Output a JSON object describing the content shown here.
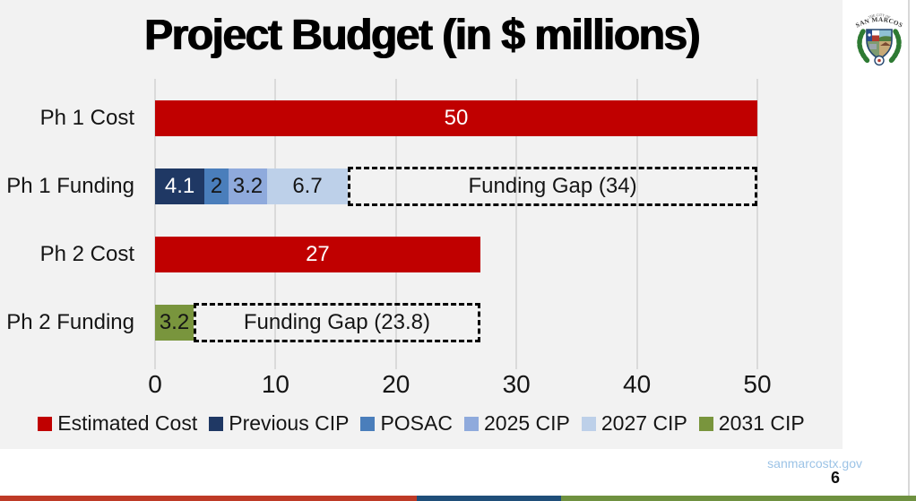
{
  "title": "Project Budget (in $ millions)",
  "logo": {
    "tagline": "THE CITY OF",
    "name": "SAN MARCOS"
  },
  "footer": {
    "website": "sanmarcostx.gov",
    "page": "6"
  },
  "footer_stripe": {
    "colors": [
      "#BE3A26",
      "#1F4E79",
      "#6F9140"
    ]
  },
  "chart_data": {
    "type": "bar",
    "orientation": "horizontal",
    "title": "Project Budget (in $ millions)",
    "xlabel": "",
    "ylabel": "",
    "xlim": [
      0,
      50
    ],
    "ticks": [
      0,
      10,
      20,
      30,
      40,
      50
    ],
    "grid": true,
    "legend_position": "bottom",
    "categories": [
      "Ph 1 Cost",
      "Ph 1 Funding",
      "Ph 2 Cost",
      "Ph 2 Funding"
    ],
    "rows": [
      {
        "category": "Ph 1 Cost",
        "segments": [
          {
            "series": "Estimated Cost",
            "value": 50,
            "label": "50"
          }
        ]
      },
      {
        "category": "Ph 1 Funding",
        "segments": [
          {
            "series": "Previous CIP",
            "value": 4.1,
            "label": "4.1"
          },
          {
            "series": "POSAC",
            "value": 2,
            "label": "2"
          },
          {
            "series": "2025 CIP",
            "value": 3.2,
            "label": "3.2"
          },
          {
            "series": "2027 CIP",
            "value": 6.7,
            "label": "6.7"
          }
        ],
        "gap": {
          "value": 34,
          "label": "Funding Gap (34)"
        }
      },
      {
        "category": "Ph 2 Cost",
        "segments": [
          {
            "series": "Estimated Cost",
            "value": 27,
            "label": "27"
          }
        ]
      },
      {
        "category": "Ph 2 Funding",
        "segments": [
          {
            "series": "2031 CIP",
            "value": 3.2,
            "label": "3.2"
          }
        ],
        "gap": {
          "value": 23.8,
          "label": "Funding Gap (23.8)"
        }
      }
    ],
    "legend": [
      {
        "label": "Estimated Cost",
        "color": "#C00000",
        "text_color": "#FFFFFF"
      },
      {
        "label": "Previous CIP",
        "color": "#1F3864",
        "text_color": "#FFFFFF"
      },
      {
        "label": "POSAC",
        "color": "#4A7EBB",
        "text_color": "#151515"
      },
      {
        "label": "2025 CIP",
        "color": "#8FAADC",
        "text_color": "#151515"
      },
      {
        "label": "2027 CIP",
        "color": "#BDD0E9",
        "text_color": "#151515"
      },
      {
        "label": "2031 CIP",
        "color": "#79953D",
        "text_color": "#151515"
      }
    ]
  }
}
